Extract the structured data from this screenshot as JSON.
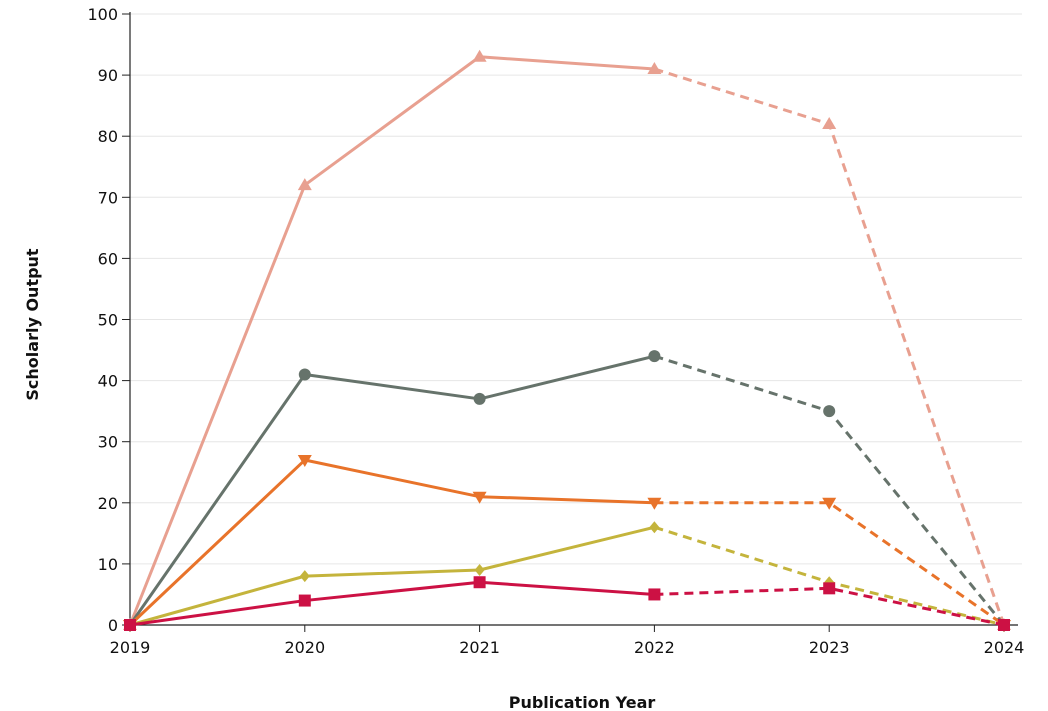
{
  "chart_data": {
    "type": "line",
    "title": "",
    "xlabel": "Publication Year",
    "ylabel": "Scholarly Output",
    "x": [
      2019,
      2020,
      2021,
      2022,
      2023,
      2024
    ],
    "xlim": [
      2019,
      2024
    ],
    "ylim": [
      0,
      100
    ],
    "y_ticks": [
      0,
      10,
      20,
      30,
      40,
      50,
      60,
      70,
      80,
      90,
      100
    ],
    "grid": true,
    "legend": "none",
    "dashed_from_x": 2022,
    "series": [
      {
        "color": "#e8a090",
        "marker": "triangle-up",
        "values": [
          0,
          72,
          93,
          91,
          82,
          0
        ]
      },
      {
        "color": "#66736b",
        "marker": "circle",
        "values": [
          0,
          41,
          37,
          44,
          35,
          0
        ]
      },
      {
        "color": "#e8732a",
        "marker": "triangle-down",
        "values": [
          0,
          27,
          21,
          20,
          20,
          0
        ]
      },
      {
        "color": "#c4b43c",
        "marker": "diamond",
        "values": [
          0,
          8,
          9,
          16,
          7,
          0
        ]
      },
      {
        "color": "#cc1144",
        "marker": "square",
        "values": [
          0,
          4,
          7,
          5,
          6,
          0
        ]
      }
    ]
  }
}
